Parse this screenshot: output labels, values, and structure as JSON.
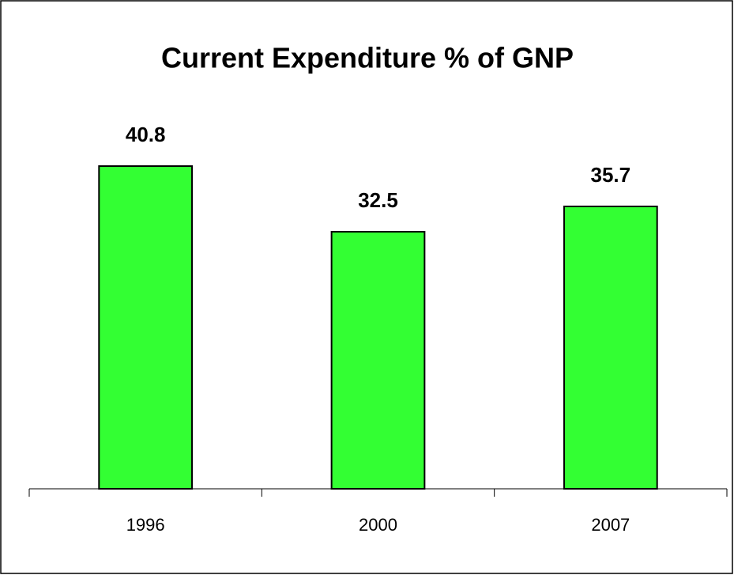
{
  "chart_data": {
    "type": "bar",
    "title": "Current Expenditure % of GNP",
    "categories": [
      "1996",
      "2000",
      "2007"
    ],
    "values": [
      40.8,
      32.5,
      35.7
    ],
    "color": "#33ff33",
    "ylim": [
      0,
      50
    ]
  }
}
